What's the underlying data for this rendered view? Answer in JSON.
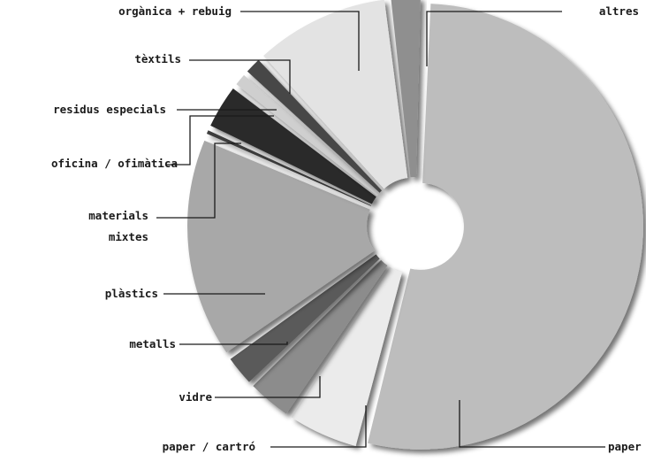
{
  "chart_data": {
    "type": "pie",
    "title": "",
    "categories": [
      "paper",
      "paper / cartró",
      "vidre",
      "metalls",
      "plàstics",
      "materials mixtes",
      "oficina / ofimàtica",
      "residus especials",
      "tèxtils",
      "orgànica + rebuig",
      "altres"
    ],
    "label_lines": [
      [
        "paper"
      ],
      [
        "paper / cartró"
      ],
      [
        "vidre"
      ],
      [
        "metalls"
      ],
      [
        "plàstics"
      ],
      [
        "materials",
        "mixtes"
      ],
      [
        "oficina / ofimàtica"
      ],
      [
        "residus especials"
      ],
      [
        "tèxtils"
      ],
      [
        "orgànica + rebuig"
      ],
      [
        "altres"
      ]
    ],
    "values": [
      54.5,
      5.5,
      3.5,
      2.5,
      16.5,
      0.6,
      3.5,
      1.2,
      1.5,
      10.2,
      2.5
    ],
    "colors": [
      "#bdbdbd",
      "#ebebeb",
      "#8c8c8c",
      "#5a5a5a",
      "#a8a8a8",
      "#3c3c3c",
      "#2a2a2a",
      "#cfcfcf",
      "#474747",
      "#e3e3e3",
      "#8f8f8f"
    ],
    "legend": "none",
    "chart_style": "exploded donut with leader-line labels"
  }
}
